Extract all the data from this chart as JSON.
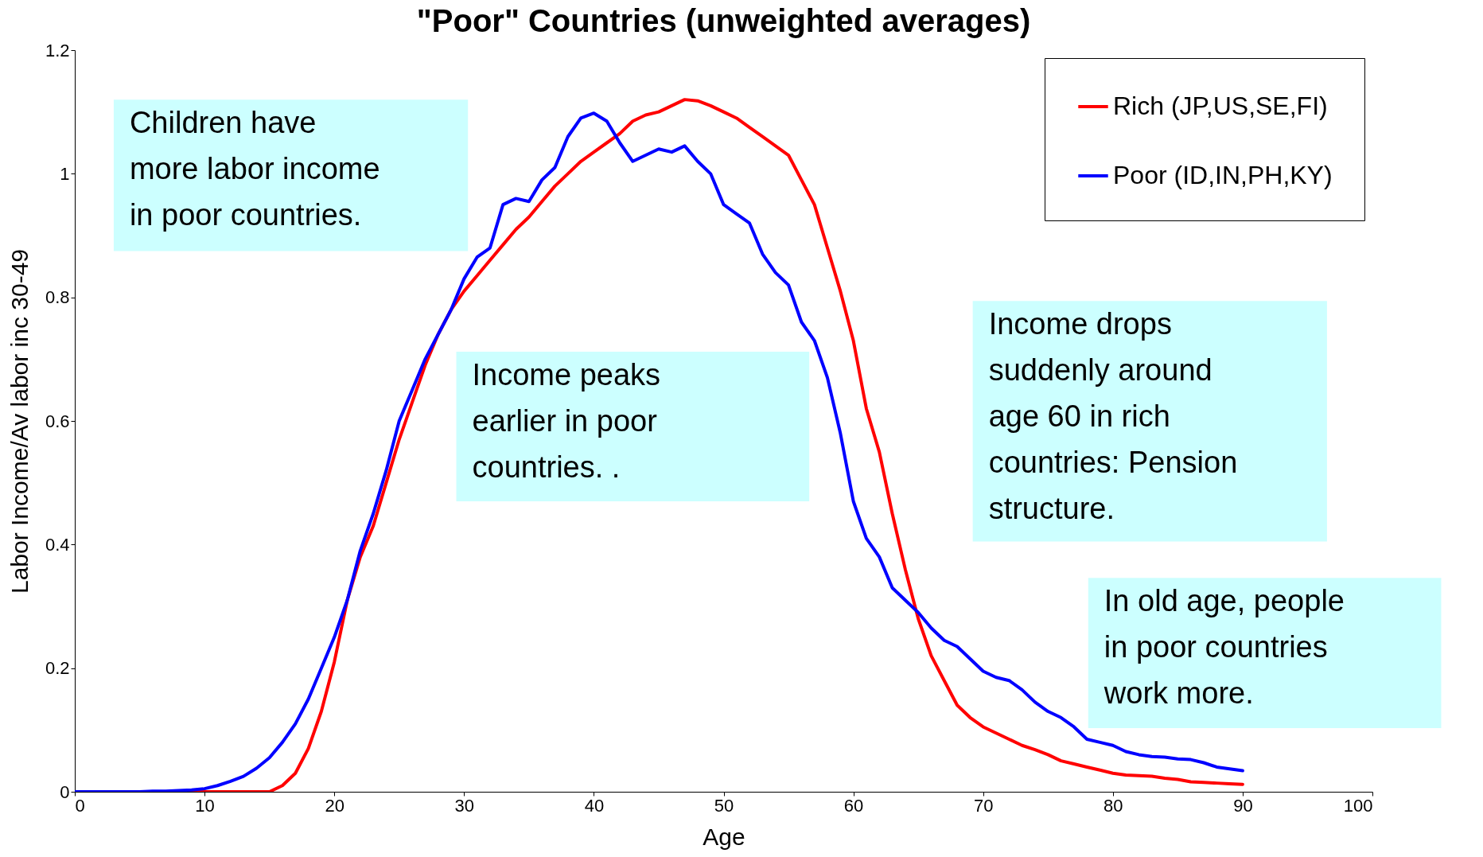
{
  "chart_data": {
    "type": "line",
    "title": "\"Poor\" Countries (unweighted averages)",
    "xlabel": "Age",
    "ylabel": "Labor Income/Av labor inc 30-49",
    "x": [
      0,
      1,
      2,
      3,
      4,
      5,
      6,
      7,
      8,
      9,
      10,
      11,
      12,
      13,
      14,
      15,
      16,
      17,
      18,
      19,
      20,
      21,
      22,
      23,
      24,
      25,
      26,
      27,
      28,
      29,
      30,
      31,
      32,
      33,
      34,
      35,
      36,
      37,
      38,
      39,
      40,
      41,
      42,
      43,
      44,
      45,
      46,
      47,
      48,
      49,
      50,
      51,
      52,
      53,
      54,
      55,
      56,
      57,
      58,
      59,
      60,
      61,
      62,
      63,
      64,
      65,
      66,
      67,
      68,
      69,
      70,
      71,
      72,
      73,
      74,
      75,
      76,
      77,
      78,
      79,
      80,
      81,
      82,
      83,
      84,
      85,
      86,
      87,
      88,
      89,
      90
    ],
    "series": [
      {
        "name": "Rich (JP,US,SE,FI)",
        "color": "#ff0000",
        "values": [
          null,
          null,
          null,
          null,
          null,
          null,
          null,
          null,
          0,
          0,
          0,
          0,
          0,
          0,
          0,
          0,
          0.01,
          0.03,
          0.07,
          0.13,
          0.21,
          0.31,
          0.38,
          0.43,
          0.5,
          0.57,
          0.63,
          0.69,
          0.74,
          0.78,
          0.81,
          0.835,
          0.86,
          0.885,
          0.91,
          0.93,
          0.955,
          0.98,
          1.0,
          1.02,
          1.035,
          1.05,
          1.065,
          1.085,
          1.095,
          1.1,
          1.11,
          1.12,
          1.118,
          1.11,
          1.1,
          1.09,
          1.075,
          1.06,
          1.045,
          1.03,
          0.99,
          0.95,
          0.88,
          0.81,
          0.73,
          0.62,
          0.55,
          0.45,
          0.36,
          0.28,
          0.22,
          0.18,
          0.14,
          0.12,
          0.105,
          0.095,
          0.085,
          0.075,
          0.068,
          0.06,
          0.05,
          0.045,
          0.04,
          0.035,
          0.03,
          0.027,
          0.026,
          0.025,
          0.022,
          0.02,
          0.016,
          0.015,
          0.014,
          0.013,
          0.012
        ]
      },
      {
        "name": "Poor (ID,IN,PH,KY)",
        "color": "#0000ff",
        "values": [
          0,
          0,
          0,
          0,
          0,
          0,
          0.001,
          0.001,
          0.002,
          0.003,
          0.005,
          0.01,
          0.017,
          0.025,
          0.038,
          0.055,
          0.08,
          0.11,
          0.15,
          0.2,
          0.25,
          0.31,
          0.39,
          0.45,
          0.52,
          0.6,
          0.65,
          0.7,
          0.74,
          0.78,
          0.83,
          0.865,
          0.88,
          0.95,
          0.96,
          0.955,
          0.99,
          1.01,
          1.06,
          1.09,
          1.098,
          1.085,
          1.05,
          1.02,
          1.03,
          1.04,
          1.035,
          1.045,
          1.02,
          1.0,
          0.95,
          0.935,
          0.92,
          0.87,
          0.84,
          0.82,
          0.76,
          0.73,
          0.67,
          0.58,
          0.47,
          0.41,
          0.38,
          0.33,
          0.31,
          0.29,
          0.265,
          0.245,
          0.235,
          0.215,
          0.195,
          0.185,
          0.18,
          0.165,
          0.145,
          0.13,
          0.12,
          0.105,
          0.085,
          0.08,
          0.075,
          0.065,
          0.06,
          0.057,
          0.056,
          0.053,
          0.052,
          0.047,
          0.04,
          0.037,
          0.034
        ]
      }
    ],
    "xlim": [
      0,
      100
    ],
    "xticks": [
      0,
      10,
      20,
      30,
      40,
      50,
      60,
      70,
      80,
      90,
      100
    ],
    "ylim": [
      0,
      1.2
    ],
    "yticks": [
      0,
      0.2,
      0.4,
      0.6,
      0.8,
      1,
      1.2
    ],
    "grid": false,
    "legend": "top right",
    "marker": "none",
    "line_style": "solid",
    "annotations": [
      "Children have\nmore labor income\nin poor countries.",
      "Income peaks\nearlier in poor\ncountries. .",
      "Income drops\nsuddenly around\nage 60 in rich\ncountries: Pension\nstructure.",
      "In old age, people\nin poor countries\nwork more."
    ]
  }
}
